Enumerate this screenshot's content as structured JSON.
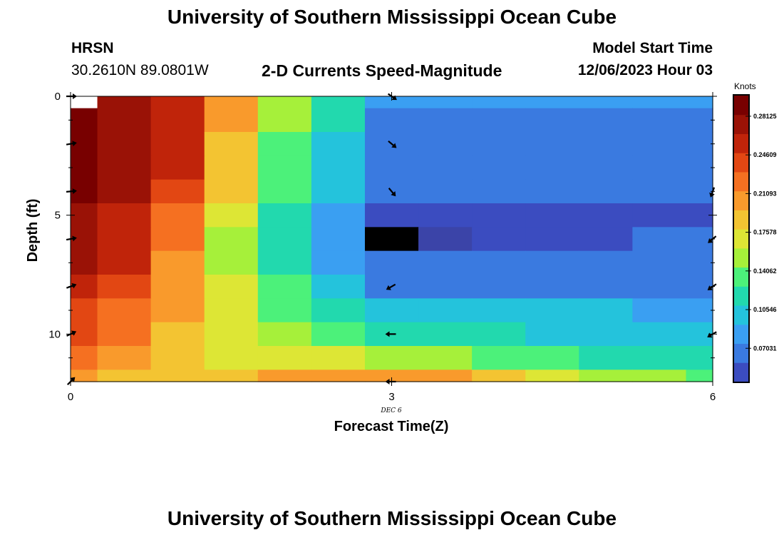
{
  "header": {
    "title": "University of Southern Mississippi Ocean Cube",
    "station": "HRSN",
    "coords": "30.2610N  89.0801W",
    "product": "2-D Currents Speed-Magnitude",
    "model_start_label": "Model Start Time",
    "model_start_value": "12/06/2023 Hour 03"
  },
  "footer": {
    "title": "University of Southern Mississippi Ocean Cube"
  },
  "colors": {
    "ramp": [
      "#3b4cc0",
      "#3a7ae0",
      "#3a9ff2",
      "#24c3dc",
      "#22d9ae",
      "#4cf17a",
      "#a6f03a",
      "#dde635",
      "#f3c432",
      "#f99a2c",
      "#f57021",
      "#e24713",
      "#c0240a",
      "#9a1206",
      "#780000"
    ],
    "missing": "#000000",
    "missing_alt": "#3b44a8",
    "no_data": "#ffffff"
  },
  "chart_data": {
    "type": "heatmap",
    "title": "2-D Currents Speed-Magnitude",
    "xlabel": "Forecast Time(Z)",
    "ylabel": "Depth (ft)",
    "xlim": [
      0,
      6
    ],
    "ylim": [
      12,
      0
    ],
    "x_ticks": [
      0,
      3,
      6
    ],
    "y_ticks": [
      0,
      5,
      10
    ],
    "x_sublabel": "DEC 6",
    "colorbar": {
      "label": "Knots",
      "min": 0.04,
      "max": 0.3,
      "ticks": [
        "0.28125",
        "0.24609",
        "0.21093",
        "0.17578",
        "0.14062",
        "0.10546",
        "0.07031"
      ],
      "tick_values": [
        0.28125,
        0.24609,
        0.21093,
        0.17578,
        0.14062,
        0.10546,
        0.07031
      ]
    },
    "columns": [
      0,
      0.5,
      1,
      1.5,
      2,
      2.5,
      3,
      3.5,
      4,
      4.5,
      5,
      5.5,
      6
    ],
    "rows": [
      0,
      1,
      2,
      3,
      4,
      5,
      6,
      7,
      8,
      9,
      10,
      11,
      12
    ],
    "values": [
      [
        null,
        0.27,
        0.255,
        0.205,
        0.155,
        0.115,
        0.075,
        0.075,
        0.075,
        0.075,
        0.075,
        0.075,
        0.075
      ],
      [
        0.3,
        0.27,
        0.255,
        0.2,
        0.145,
        0.115,
        0.068,
        0.068,
        0.068,
        0.068,
        0.068,
        0.068,
        0.068
      ],
      [
        0.3,
        0.27,
        0.255,
        0.195,
        0.138,
        0.108,
        0.066,
        0.066,
        0.066,
        0.066,
        0.066,
        0.066,
        0.066
      ],
      [
        0.29,
        0.27,
        0.25,
        0.188,
        0.132,
        0.1,
        0.062,
        0.062,
        0.062,
        0.062,
        0.062,
        0.062,
        0.062
      ],
      [
        0.285,
        0.268,
        0.245,
        0.182,
        0.128,
        0.096,
        0.058,
        0.058,
        0.058,
        0.058,
        0.058,
        0.058,
        0.058
      ],
      [
        0.28,
        0.265,
        0.225,
        0.17,
        0.12,
        0.09,
        0.05,
        0.05,
        0.05,
        0.05,
        0.05,
        0.05,
        0.05
      ],
      [
        0.278,
        0.26,
        0.215,
        0.16,
        0.115,
        0.078,
        null,
        null,
        0.045,
        0.05,
        0.055,
        0.058,
        0.062
      ],
      [
        0.278,
        0.258,
        0.205,
        0.16,
        0.118,
        0.085,
        0.058,
        0.058,
        0.058,
        0.058,
        0.058,
        0.058,
        0.058
      ],
      [
        0.262,
        0.24,
        0.205,
        0.165,
        0.128,
        0.1,
        0.07,
        0.07,
        0.07,
        0.07,
        0.07,
        0.07,
        0.07
      ],
      [
        0.248,
        0.225,
        0.2,
        0.17,
        0.14,
        0.115,
        0.1,
        0.1,
        0.097,
        0.097,
        0.097,
        0.092,
        0.088
      ],
      [
        0.238,
        0.218,
        0.195,
        0.172,
        0.152,
        0.135,
        0.125,
        0.118,
        0.112,
        0.108,
        0.108,
        0.102,
        0.098
      ],
      [
        0.22,
        0.198,
        0.188,
        0.178,
        0.17,
        0.165,
        0.158,
        0.148,
        0.14,
        0.13,
        0.122,
        0.115,
        0.11
      ],
      [
        0.205,
        0.195,
        0.19,
        0.188,
        0.198,
        0.205,
        0.21,
        0.198,
        0.182,
        0.17,
        0.16,
        0.15,
        0.14
      ]
    ],
    "special_cells": [
      {
        "row": 6,
        "col": 6,
        "value": "missing"
      },
      {
        "row": 6,
        "col": 7,
        "value": "missing_alt"
      },
      {
        "row": 0,
        "col": 0,
        "value": "no_data"
      }
    ],
    "direction_arrows": [
      {
        "time": 0,
        "depth": 0,
        "angle_deg": 0
      },
      {
        "time": 0,
        "depth": 2,
        "angle_deg": -10
      },
      {
        "time": 0,
        "depth": 4,
        "angle_deg": -5
      },
      {
        "time": 0,
        "depth": 6,
        "angle_deg": -10
      },
      {
        "time": 0,
        "depth": 8,
        "angle_deg": -20
      },
      {
        "time": 0,
        "depth": 10,
        "angle_deg": -25
      },
      {
        "time": 0,
        "depth": 12,
        "angle_deg": -45
      },
      {
        "time": 3,
        "depth": 0,
        "angle_deg": 35
      },
      {
        "time": 3,
        "depth": 2,
        "angle_deg": 40
      },
      {
        "time": 3,
        "depth": 4,
        "angle_deg": 50
      },
      {
        "time": 3,
        "depth": 8,
        "angle_deg": 150
      },
      {
        "time": 3,
        "depth": 10,
        "angle_deg": 180
      },
      {
        "time": 3,
        "depth": 12,
        "angle_deg": 180
      },
      {
        "time": 6,
        "depth": 4,
        "angle_deg": 110
      },
      {
        "time": 6,
        "depth": 6,
        "angle_deg": 140
      },
      {
        "time": 6,
        "depth": 8,
        "angle_deg": 145
      },
      {
        "time": 6,
        "depth": 10,
        "angle_deg": 150
      }
    ]
  }
}
